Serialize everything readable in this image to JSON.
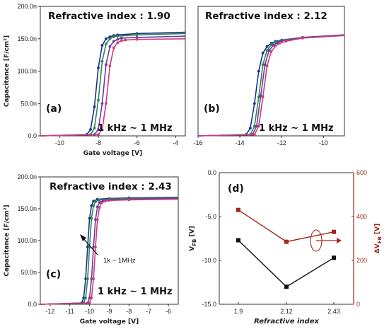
{
  "chart_data": [
    {
      "id": "a",
      "type": "line",
      "panel_label": "(a)",
      "title": "Refractive index : 1.90",
      "frequency_range": "1 kHz ~ 1 MHz",
      "xlabel": "Gate voltage [V]",
      "ylabel": "Capacitance [F/cm²]",
      "xlim": [
        -11,
        -3.5
      ],
      "ylim": [
        0,
        200
      ],
      "xticks": [
        -10,
        -8,
        -6,
        -4
      ],
      "yticks": [
        0,
        50,
        100,
        150,
        200
      ],
      "ytick_labels": [
        "0.0",
        "50.0n",
        "100.0n",
        "150.0n",
        "200.0n"
      ],
      "series": [
        {
          "color": "#1f2f8f",
          "x": [
            -11,
            -8.6,
            -8.4,
            -8.2,
            -8.0,
            -7.8,
            -7.6,
            -7.4,
            -7.2,
            -7.0,
            -6.0,
            -3.5
          ],
          "values": [
            0,
            2,
            10,
            45,
            105,
            140,
            150,
            153,
            155,
            156,
            158,
            160
          ]
        },
        {
          "color": "#2a8a4a",
          "x": [
            -11,
            -8.4,
            -8.2,
            -8.0,
            -7.8,
            -7.6,
            -7.4,
            -7.2,
            -7.0,
            -6.0,
            -3.5
          ],
          "values": [
            0,
            2,
            12,
            55,
            115,
            142,
            150,
            153,
            154,
            156,
            158
          ]
        },
        {
          "color": "#6a3aa8",
          "x": [
            -11,
            -8.2,
            -8.0,
            -7.8,
            -7.6,
            -7.4,
            -7.2,
            -7.0,
            -6.8,
            -6.0,
            -3.5
          ],
          "values": [
            0,
            2,
            10,
            50,
            110,
            138,
            146,
            149,
            151,
            152,
            154
          ]
        },
        {
          "color": "#d03a7a",
          "x": [
            -11,
            -8.0,
            -7.8,
            -7.6,
            -7.4,
            -7.2,
            -7.0,
            -6.8,
            -6.6,
            -6.0,
            -3.5
          ],
          "values": [
            0,
            2,
            10,
            50,
            108,
            136,
            144,
            147,
            148,
            149,
            150
          ]
        }
      ]
    },
    {
      "id": "b",
      "type": "line",
      "panel_label": "(b)",
      "title": "Refractive index : 2.12",
      "frequency_range": "1 kHz ~ 1 MHz",
      "xlabel": "",
      "ylabel": "",
      "xlim": [
        -16,
        -9
      ],
      "ylim": [
        0,
        200
      ],
      "xticks": [
        -16,
        -14,
        -12,
        -10
      ],
      "yticks": [],
      "series": [
        {
          "color": "#1f2f8f",
          "x": [
            -16,
            -13.7,
            -13.5,
            -13.3,
            -13.1,
            -12.9,
            -12.7,
            -12.5,
            -12.3,
            -12.0,
            -11.0,
            -9.0
          ],
          "values": [
            0,
            2,
            12,
            50,
            100,
            128,
            138,
            143,
            146,
            148,
            152,
            156
          ]
        },
        {
          "color": "#2a8a4a",
          "x": [
            -16,
            -13.5,
            -13.3,
            -13.1,
            -12.9,
            -12.7,
            -12.5,
            -12.3,
            -12.0,
            -11.0,
            -9.0
          ],
          "values": [
            0,
            2,
            15,
            60,
            110,
            132,
            141,
            145,
            148,
            152,
            156
          ]
        },
        {
          "color": "#6a3aa8",
          "x": [
            -16,
            -13.4,
            -13.2,
            -13.0,
            -12.8,
            -12.6,
            -12.4,
            -12.2,
            -12.0,
            -11.0,
            -9.0
          ],
          "values": [
            0,
            2,
            15,
            62,
            110,
            132,
            140,
            144,
            147,
            152,
            156
          ]
        },
        {
          "color": "#d03a7a",
          "x": [
            -16,
            -13.3,
            -13.1,
            -12.9,
            -12.7,
            -12.5,
            -12.3,
            -12.1,
            -11.8,
            -11.0,
            -9.0
          ],
          "values": [
            0,
            2,
            15,
            60,
            108,
            130,
            139,
            143,
            146,
            151,
            155
          ]
        }
      ]
    },
    {
      "id": "c",
      "type": "line",
      "panel_label": "(c)",
      "title": "Refractive index : 2.43",
      "frequency_range": "1 kHz ~ 1 MHz",
      "annotation": "1k ~ 1MHz",
      "xlabel": "Gate voltage [V]",
      "ylabel": "Capacitance [F/cm²]",
      "xlim": [
        -12.5,
        -5.5
      ],
      "ylim": [
        0,
        200
      ],
      "xticks": [
        -12,
        -11,
        -10,
        -9,
        -8,
        -7,
        -6
      ],
      "yticks": [
        0,
        50,
        100,
        150,
        200
      ],
      "ytick_labels": [
        "0.0",
        "50.0n",
        "100.0n",
        "150.0n",
        "200.0n"
      ],
      "series": [
        {
          "color": "#1f2f8f",
          "x": [
            -12.5,
            -10.4,
            -10.3,
            -10.2,
            -10.1,
            -10.0,
            -9.9,
            -9.8,
            -9.6,
            -9.0,
            -8.0,
            -5.5
          ],
          "values": [
            0,
            2,
            10,
            40,
            90,
            135,
            155,
            162,
            165,
            166,
            167,
            168
          ]
        },
        {
          "color": "#2a8a4a",
          "x": [
            -12.5,
            -10.3,
            -10.2,
            -10.1,
            -10.0,
            -9.9,
            -9.8,
            -9.7,
            -9.5,
            -9.0,
            -8.0,
            -5.5
          ],
          "values": [
            0,
            2,
            10,
            40,
            90,
            135,
            155,
            161,
            164,
            165,
            166,
            167
          ]
        },
        {
          "color": "#6a3aa8",
          "x": [
            -12.5,
            -10.1,
            -10.0,
            -9.9,
            -9.8,
            -9.7,
            -9.6,
            -9.5,
            -9.3,
            -9.0,
            -8.0,
            -5.5
          ],
          "values": [
            0,
            2,
            10,
            40,
            90,
            133,
            153,
            160,
            163,
            164,
            165,
            166
          ]
        },
        {
          "color": "#d03a7a",
          "x": [
            -12.5,
            -10.0,
            -9.9,
            -9.8,
            -9.7,
            -9.6,
            -9.5,
            -9.4,
            -9.2,
            -9.0,
            -8.0,
            -5.5
          ],
          "values": [
            0,
            2,
            10,
            40,
            90,
            133,
            152,
            159,
            162,
            163,
            164,
            165
          ]
        }
      ]
    },
    {
      "id": "d",
      "type": "line",
      "panel_label": "(d)",
      "xlabel": "Refractive index",
      "categories": [
        "1.9",
        "2.12",
        "2.43"
      ],
      "ylabel_left": "V_FB [V]",
      "ylabel_right": "ΔV_FB [V]",
      "ylim_left": [
        -15,
        0
      ],
      "ylim_right": [
        0,
        600
      ],
      "yticks_left": [
        0,
        -5,
        -10,
        -15
      ],
      "ytick_labels_left": [
        "0.0",
        "-5.0",
        "-10.0",
        "-15.0"
      ],
      "yticks_right": [
        0,
        200,
        400,
        600
      ],
      "series": [
        {
          "axis": "left",
          "color": "#111111",
          "values": [
            -7.7,
            -13.0,
            -9.7
          ]
        },
        {
          "axis": "right",
          "color": "#a0281e",
          "values": [
            430,
            285,
            330
          ]
        }
      ]
    }
  ]
}
